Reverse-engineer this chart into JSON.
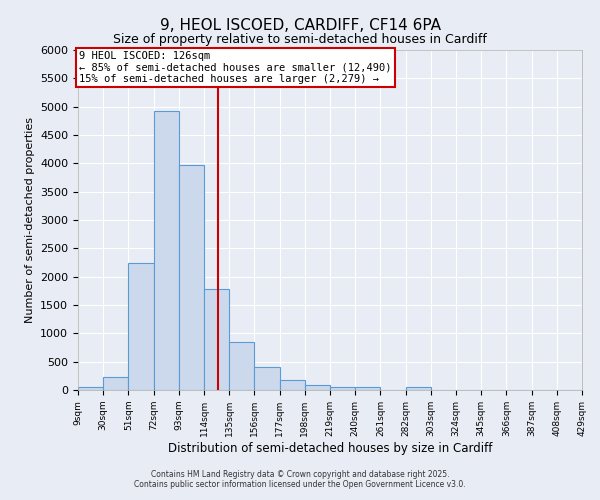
{
  "title": "9, HEOL ISCOED, CARDIFF, CF14 6PA",
  "subtitle": "Size of property relative to semi-detached houses in Cardiff",
  "xlabel": "Distribution of semi-detached houses by size in Cardiff",
  "ylabel": "Number of semi-detached properties",
  "bin_labels": [
    "9sqm",
    "30sqm",
    "51sqm",
    "72sqm",
    "93sqm",
    "114sqm",
    "135sqm",
    "156sqm",
    "177sqm",
    "198sqm",
    "219sqm",
    "240sqm",
    "261sqm",
    "282sqm",
    "303sqm",
    "324sqm",
    "345sqm",
    "366sqm",
    "387sqm",
    "408sqm",
    "429sqm"
  ],
  "bin_edges": [
    9,
    30,
    51,
    72,
    93,
    114,
    135,
    156,
    177,
    198,
    219,
    240,
    261,
    282,
    303,
    324,
    345,
    366,
    387,
    408,
    429
  ],
  "bar_heights": [
    50,
    230,
    2250,
    4930,
    3970,
    1780,
    850,
    400,
    175,
    95,
    60,
    55,
    0,
    50,
    0,
    0,
    0,
    0,
    0,
    0
  ],
  "bar_color": "#ccd9ec",
  "bar_edge_color": "#5b9bd5",
  "property_size": 126,
  "vline_color": "#cc0000",
  "annotation_line1": "9 HEOL ISCOED: 126sqm",
  "annotation_line2": "← 85% of semi-detached houses are smaller (12,490)",
  "annotation_line3": "15% of semi-detached houses are larger (2,279) →",
  "annotation_box_color": "#ffffff",
  "annotation_box_edge": "#cc0000",
  "ylim": [
    0,
    6000
  ],
  "yticks": [
    0,
    500,
    1000,
    1500,
    2000,
    2500,
    3000,
    3500,
    4000,
    4500,
    5000,
    5500,
    6000
  ],
  "background_color": "#e8ecf4",
  "plot_background": "#e8ecf4",
  "grid_color": "#ffffff",
  "footer_line1": "Contains HM Land Registry data © Crown copyright and database right 2025.",
  "footer_line2": "Contains public sector information licensed under the Open Government Licence v3.0."
}
